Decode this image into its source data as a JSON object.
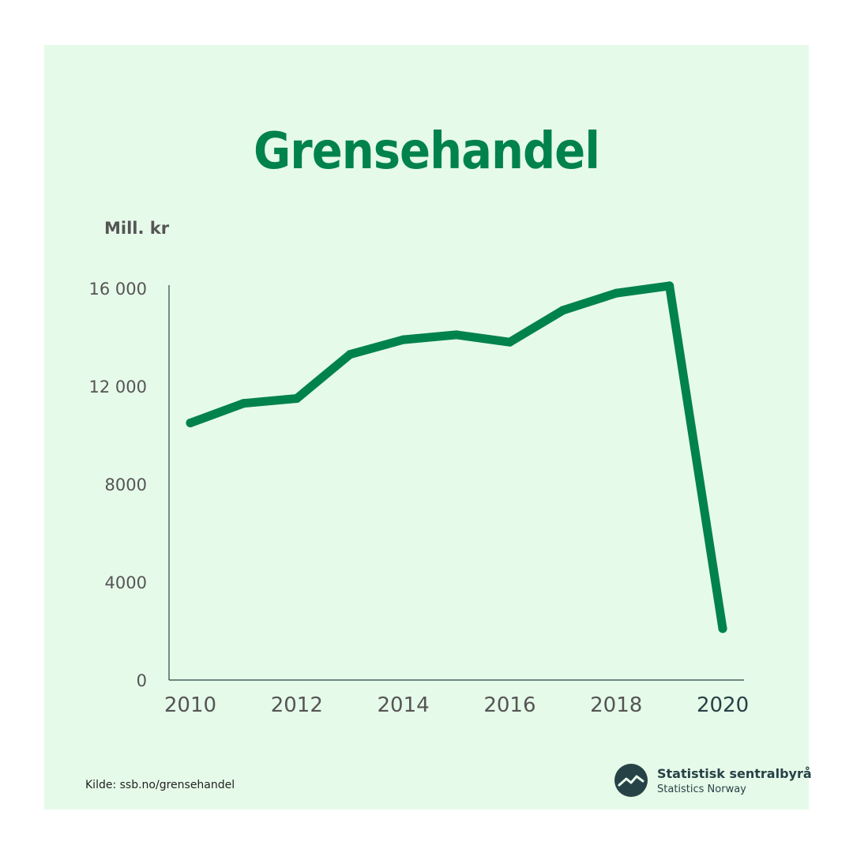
{
  "colors": {
    "background": "#e6fae9",
    "accent": "#00824d",
    "axis": "#274247",
    "tick_text": "#555555"
  },
  "title": "Grensehandel",
  "source": "Kilde: ssb.no/grensehandel",
  "logo": {
    "icon": "ssb-logo-icon",
    "name": "Statistisk sentralbyrå",
    "subtitle": "Statistics Norway"
  },
  "chart_data": {
    "type": "line",
    "title": "Grensehandel",
    "ylabel": "Mill. kr",
    "xlabel": "",
    "x": [
      2010,
      2011,
      2012,
      2013,
      2014,
      2015,
      2016,
      2017,
      2018,
      2019,
      2020
    ],
    "values": [
      10500,
      11300,
      11500,
      13300,
      13900,
      14100,
      13800,
      15100,
      15800,
      16100,
      2100
    ],
    "xlim": [
      2009.6,
      2020.4
    ],
    "ylim": [
      0,
      16000
    ],
    "yticks": [
      {
        "value": 0,
        "label": "0"
      },
      {
        "value": 4000,
        "label": "4000"
      },
      {
        "value": 8000,
        "label": "8000"
      },
      {
        "value": 12000,
        "label": "12 000"
      },
      {
        "value": 16000,
        "label": "16 000"
      }
    ],
    "xticks": [
      {
        "value": 2010,
        "label": "2010"
      },
      {
        "value": 2012,
        "label": "2012"
      },
      {
        "value": 2014,
        "label": "2014"
      },
      {
        "value": 2016,
        "label": "2016"
      },
      {
        "value": 2018,
        "label": "2018"
      },
      {
        "value": 2020,
        "label": "2020"
      }
    ],
    "grid": false,
    "legend": "none"
  }
}
